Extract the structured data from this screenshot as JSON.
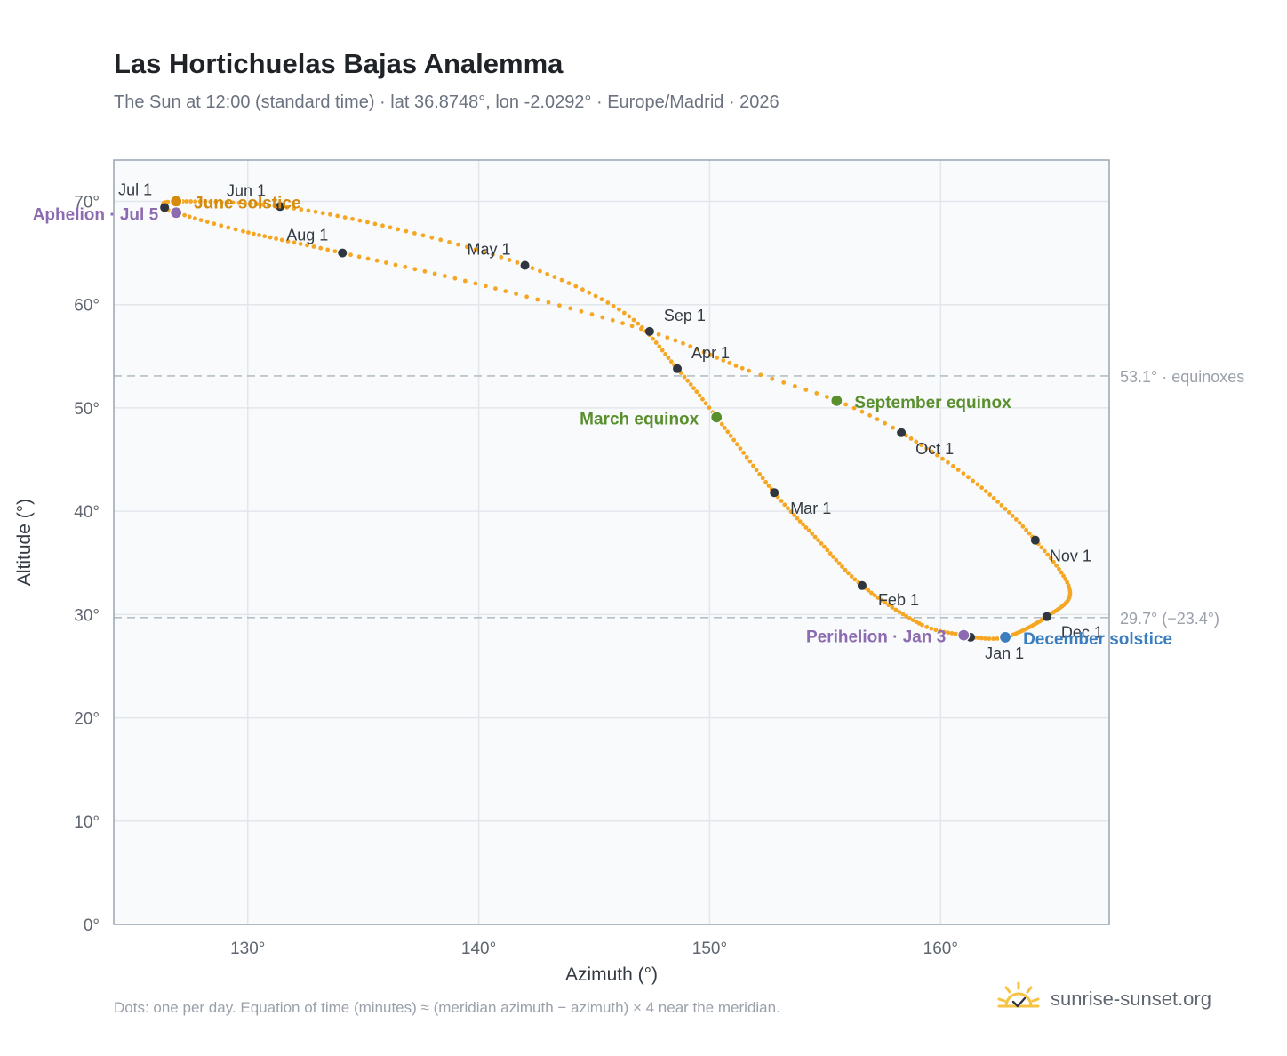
{
  "header": {
    "title": "Las Hortichuelas Bajas Analemma",
    "subtitle": "The Sun at 12:00 (standard time) · lat 36.8748°, lon -2.0292° · Europe/Madrid · 2026"
  },
  "footer": {
    "note": "Dots: one per day. Equation of time (minutes) ≈ (meridian azimuth − azimuth) × 4 near the meridian.",
    "brand": "sunrise-sunset.org"
  },
  "colors": {
    "curve": "#f5a623",
    "month_marker": "#2f3640",
    "solstice_june": "#d48a0a",
    "solstice_december": "#3a7ebf",
    "equinox": "#5a8f2e",
    "apsis": "#8c6bb1",
    "plot_bg": "#f8fafc",
    "grid": "#e3e7ec",
    "frame": "#9aa5b1",
    "reference_line": "#b4c0c8"
  },
  "chart_data": {
    "type": "scatter",
    "xlabel": "Azimuth (°)",
    "ylabel": "Altitude (°)",
    "xlim": [
      124.2,
      167.3
    ],
    "ylim": [
      0,
      74
    ],
    "xticks": [
      130,
      140,
      150,
      160
    ],
    "yticks": [
      0,
      10,
      20,
      30,
      40,
      50,
      60,
      70
    ],
    "tick_suffix": "°",
    "grid": true,
    "path_anchors": [
      {
        "date": "2026-01-01",
        "az": 161.3,
        "alt": 27.8
      },
      {
        "date": "2026-01-03",
        "az": 161.0,
        "alt": 28.0
      },
      {
        "date": "2026-01-14",
        "az": 159.2,
        "alt": 29.0
      },
      {
        "date": "2026-02-01",
        "az": 156.6,
        "alt": 32.8
      },
      {
        "date": "2026-02-15",
        "az": 154.7,
        "alt": 37.2
      },
      {
        "date": "2026-03-01",
        "az": 152.8,
        "alt": 41.8
      },
      {
        "date": "2026-03-20",
        "az": 150.3,
        "alt": 49.1
      },
      {
        "date": "2026-04-01",
        "az": 148.6,
        "alt": 53.8
      },
      {
        "date": "2026-04-16",
        "az": 146.3,
        "alt": 59.2
      },
      {
        "date": "2026-05-01",
        "az": 142.0,
        "alt": 63.8
      },
      {
        "date": "2026-05-16",
        "az": 136.5,
        "alt": 67.3
      },
      {
        "date": "2026-06-01",
        "az": 131.4,
        "alt": 69.5
      },
      {
        "date": "2026-06-21",
        "az": 126.9,
        "alt": 70.0
      },
      {
        "date": "2026-07-01",
        "az": 126.4,
        "alt": 69.4
      },
      {
        "date": "2026-07-05",
        "az": 126.9,
        "alt": 68.9
      },
      {
        "date": "2026-07-16",
        "az": 129.8,
        "alt": 67.1
      },
      {
        "date": "2026-08-01",
        "az": 134.1,
        "alt": 65.0
      },
      {
        "date": "2026-08-16",
        "az": 140.3,
        "alt": 61.8
      },
      {
        "date": "2026-09-01",
        "az": 147.4,
        "alt": 57.4
      },
      {
        "date": "2026-09-15",
        "az": 151.7,
        "alt": 53.6
      },
      {
        "date": "2026-09-23",
        "az": 155.5,
        "alt": 50.7
      },
      {
        "date": "2026-10-01",
        "az": 158.3,
        "alt": 47.6
      },
      {
        "date": "2026-10-16",
        "az": 161.6,
        "alt": 42.6
      },
      {
        "date": "2026-11-01",
        "az": 164.1,
        "alt": 37.2
      },
      {
        "date": "2026-11-16",
        "az": 165.6,
        "alt": 32.3
      },
      {
        "date": "2026-12-01",
        "az": 164.6,
        "alt": 29.8
      },
      {
        "date": "2026-12-21",
        "az": 162.8,
        "alt": 27.8
      },
      {
        "date": "2026-12-31",
        "az": 161.3,
        "alt": 27.8
      }
    ],
    "month_markers": [
      {
        "label": "Jan 1",
        "az": 161.3,
        "alt": 27.8,
        "anchor": "start",
        "dx": 16,
        "dy": 24
      },
      {
        "label": "Feb 1",
        "az": 156.6,
        "alt": 32.8,
        "anchor": "start",
        "dx": 18,
        "dy": 22
      },
      {
        "label": "Mar 1",
        "az": 152.8,
        "alt": 41.8,
        "anchor": "start",
        "dx": 18,
        "dy": 24
      },
      {
        "label": "Apr 1",
        "az": 148.6,
        "alt": 53.8,
        "anchor": "start",
        "dx": 16,
        "dy": -12
      },
      {
        "label": "May 1",
        "az": 142.0,
        "alt": 63.8,
        "anchor": "end",
        "dx": -16,
        "dy": -12
      },
      {
        "label": "Jun 1",
        "az": 131.4,
        "alt": 69.5,
        "anchor": "end",
        "dx": -16,
        "dy": -12
      },
      {
        "label": "Jul 1",
        "az": 126.4,
        "alt": 69.4,
        "anchor": "end",
        "dx": -14,
        "dy": -14
      },
      {
        "label": "Aug 1",
        "az": 134.1,
        "alt": 65.0,
        "anchor": "end",
        "dx": -16,
        "dy": -14
      },
      {
        "label": "Sep 1",
        "az": 147.4,
        "alt": 57.4,
        "anchor": "start",
        "dx": 16,
        "dy": -12
      },
      {
        "label": "Oct 1",
        "az": 158.3,
        "alt": 47.6,
        "anchor": "start",
        "dx": 16,
        "dy": 24
      },
      {
        "label": "Nov 1",
        "az": 164.1,
        "alt": 37.2,
        "anchor": "start",
        "dx": 16,
        "dy": 24
      },
      {
        "label": "Dec 1",
        "az": 164.6,
        "alt": 29.8,
        "anchor": "start",
        "dx": 16,
        "dy": 24
      }
    ],
    "events": [
      {
        "label": "June solstice",
        "az": 126.9,
        "alt": 70.0,
        "color_key": "solstice_june",
        "anchor": "start",
        "dx": 20,
        "dy": 8
      },
      {
        "label": "Aphelion · Jul 5",
        "az": 126.9,
        "alt": 68.9,
        "color_key": "apsis",
        "anchor": "end",
        "dx": -20,
        "dy": 8
      },
      {
        "label": "March equinox",
        "az": 150.3,
        "alt": 49.1,
        "color_key": "equinox",
        "anchor": "end",
        "dx": -20,
        "dy": 8
      },
      {
        "label": "September equinox",
        "az": 155.5,
        "alt": 50.7,
        "color_key": "equinox",
        "anchor": "start",
        "dx": 20,
        "dy": 8
      },
      {
        "label": "Perihelion · Jan 3",
        "az": 161.0,
        "alt": 28.0,
        "color_key": "apsis",
        "anchor": "end",
        "dx": -20,
        "dy": 8
      },
      {
        "label": "December solstice",
        "az": 162.8,
        "alt": 27.8,
        "color_key": "solstice_december",
        "anchor": "start",
        "dx": 20,
        "dy": 8
      }
    ],
    "reference_lines": [
      {
        "alt": 53.1,
        "label": "53.1° · equinoxes"
      },
      {
        "alt": 29.7,
        "label": "29.7° (−23.4°)"
      }
    ]
  }
}
